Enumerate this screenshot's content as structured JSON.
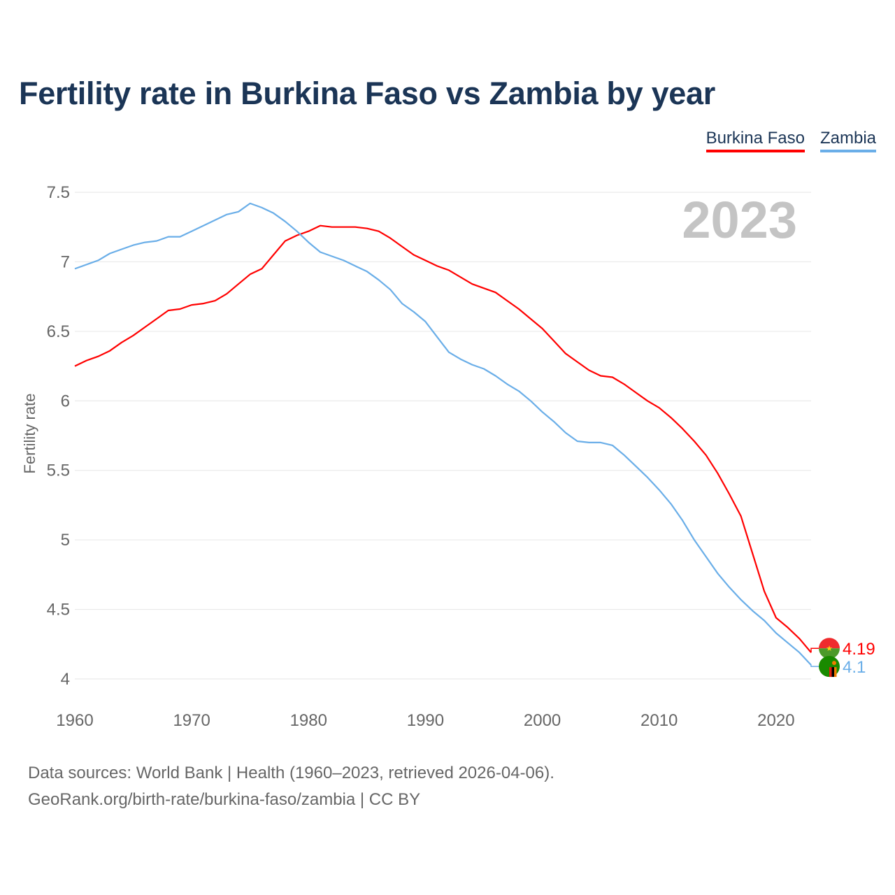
{
  "title": "Fertility rate in Burkina Faso vs Zambia by year",
  "legend": {
    "burkina": "Burkina Faso",
    "zambia": "Zambia"
  },
  "year_label": "2023",
  "source_line1": "Data sources: World Bank | Health (1960–2023, retrieved 2026-04-06).",
  "source_line2": "GeoRank.org/birth-rate/burkina-faso/zambia | CC BY",
  "colors": {
    "burkina": "#ff0000",
    "zambia": "#6aaee8",
    "title": "#1b3556",
    "grid": "#e6e6e6"
  },
  "chart_data": {
    "type": "line",
    "title": "Fertility rate in Burkina Faso vs Zambia by year",
    "xlabel": "",
    "ylabel": "Fertility rate",
    "xlim": [
      1960,
      2023
    ],
    "ylim": [
      4,
      7.5
    ],
    "x_ticks": [
      "1960",
      "1970",
      "1980",
      "1990",
      "2000",
      "2010",
      "2020"
    ],
    "y_ticks": [
      "7.5",
      "7",
      "6.5",
      "6",
      "5.5",
      "5",
      "4.5",
      "4"
    ],
    "x": [
      1960,
      1961,
      1962,
      1963,
      1964,
      1965,
      1966,
      1967,
      1968,
      1969,
      1970,
      1971,
      1972,
      1973,
      1974,
      1975,
      1976,
      1977,
      1978,
      1979,
      1980,
      1981,
      1982,
      1983,
      1984,
      1985,
      1986,
      1987,
      1988,
      1989,
      1990,
      1991,
      1992,
      1993,
      1994,
      1995,
      1996,
      1997,
      1998,
      1999,
      2000,
      2001,
      2002,
      2003,
      2004,
      2005,
      2006,
      2007,
      2008,
      2009,
      2010,
      2011,
      2012,
      2013,
      2014,
      2015,
      2016,
      2017,
      2018,
      2019,
      2020,
      2021,
      2022,
      2023
    ],
    "series": [
      {
        "name": "Burkina Faso",
        "color": "#ff0000",
        "end_label": "4.19",
        "values": [
          6.25,
          6.29,
          6.32,
          6.36,
          6.42,
          6.47,
          6.53,
          6.59,
          6.65,
          6.66,
          6.69,
          6.7,
          6.72,
          6.77,
          6.84,
          6.91,
          6.95,
          7.05,
          7.15,
          7.19,
          7.22,
          7.26,
          7.25,
          7.25,
          7.25,
          7.24,
          7.22,
          7.17,
          7.11,
          7.05,
          7.01,
          6.97,
          6.94,
          6.89,
          6.84,
          6.81,
          6.78,
          6.72,
          6.66,
          6.59,
          6.52,
          6.43,
          6.34,
          6.28,
          6.22,
          6.18,
          6.17,
          6.12,
          6.06,
          6.0,
          5.95,
          5.88,
          5.8,
          5.71,
          5.61,
          5.48,
          5.33,
          5.17,
          4.9,
          4.63,
          4.44,
          4.37,
          4.29,
          4.19
        ]
      },
      {
        "name": "Zambia",
        "color": "#6aaee8",
        "end_label": "4.1",
        "values": [
          6.95,
          6.98,
          7.01,
          7.06,
          7.09,
          7.12,
          7.14,
          7.15,
          7.18,
          7.18,
          7.22,
          7.26,
          7.3,
          7.34,
          7.36,
          7.42,
          7.39,
          7.35,
          7.29,
          7.22,
          7.14,
          7.07,
          7.04,
          7.01,
          6.97,
          6.93,
          6.87,
          6.8,
          6.7,
          6.64,
          6.57,
          6.46,
          6.35,
          6.3,
          6.26,
          6.23,
          6.18,
          6.12,
          6.07,
          6.0,
          5.92,
          5.85,
          5.77,
          5.71,
          5.7,
          5.7,
          5.68,
          5.61,
          5.53,
          5.45,
          5.36,
          5.26,
          5.14,
          5.0,
          4.88,
          4.76,
          4.66,
          4.57,
          4.49,
          4.42,
          4.33,
          4.26,
          4.19,
          4.1
        ]
      }
    ]
  }
}
